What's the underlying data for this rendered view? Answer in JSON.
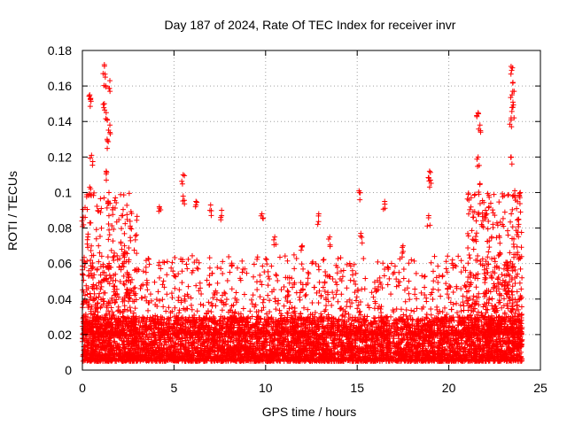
{
  "chart_data": {
    "type": "scatter",
    "title": "Day 187 of 2024, Rate Of TEC Index for receiver invr",
    "xlabel": "GPS time / hours",
    "ylabel": "ROTI / TECUs",
    "xlim": [
      0,
      25
    ],
    "ylim": [
      0,
      0.18
    ],
    "xticks": [
      0,
      5,
      10,
      15,
      20,
      25
    ],
    "yticks": [
      0,
      0.02,
      0.04,
      0.06,
      0.08,
      0.1,
      0.12,
      0.14,
      0.16,
      0.18
    ],
    "xtick_labels": [
      "0",
      "5",
      "10",
      "15",
      "20",
      "25"
    ],
    "ytick_labels": [
      "0",
      "0.02",
      "0.04",
      "0.06",
      "0.08",
      "0.1",
      "0.12",
      "0.14",
      "0.16",
      "0.18"
    ],
    "grid": true,
    "marker": "plus",
    "series": [
      {
        "name": "ROTI",
        "color": "#ff0000",
        "x_range": [
          0,
          24
        ],
        "typical_range": [
          0.005,
          0.03
        ],
        "notable_points": [
          {
            "x": 0.05,
            "y": 0.086
          },
          {
            "x": 0.3,
            "y": 0.075
          },
          {
            "x": 0.4,
            "y": 0.155
          },
          {
            "x": 0.45,
            "y": 0.153
          },
          {
            "x": 0.5,
            "y": 0.121
          },
          {
            "x": 0.4,
            "y": 0.103
          },
          {
            "x": 1.2,
            "y": 0.172
          },
          {
            "x": 1.25,
            "y": 0.165
          },
          {
            "x": 1.5,
            "y": 0.163
          },
          {
            "x": 1.2,
            "y": 0.15
          },
          {
            "x": 1.3,
            "y": 0.145
          },
          {
            "x": 1.5,
            "y": 0.138
          },
          {
            "x": 1.35,
            "y": 0.13
          },
          {
            "x": 1.3,
            "y": 0.112
          },
          {
            "x": 1.45,
            "y": 0.1
          },
          {
            "x": 1.8,
            "y": 0.097
          },
          {
            "x": 2.3,
            "y": 0.07
          },
          {
            "x": 4.2,
            "y": 0.092
          },
          {
            "x": 5.5,
            "y": 0.11
          },
          {
            "x": 5.5,
            "y": 0.098
          },
          {
            "x": 6.2,
            "y": 0.095
          },
          {
            "x": 7.0,
            "y": 0.093
          },
          {
            "x": 7.6,
            "y": 0.09
          },
          {
            "x": 9.8,
            "y": 0.088
          },
          {
            "x": 10.5,
            "y": 0.075
          },
          {
            "x": 12.0,
            "y": 0.07
          },
          {
            "x": 12.9,
            "y": 0.088
          },
          {
            "x": 13.5,
            "y": 0.075
          },
          {
            "x": 15.1,
            "y": 0.101
          },
          {
            "x": 15.2,
            "y": 0.077
          },
          {
            "x": 16.5,
            "y": 0.095
          },
          {
            "x": 17.5,
            "y": 0.07
          },
          {
            "x": 18.95,
            "y": 0.112
          },
          {
            "x": 19.0,
            "y": 0.107
          },
          {
            "x": 18.9,
            "y": 0.087
          },
          {
            "x": 20.2,
            "y": 0.062
          },
          {
            "x": 21.6,
            "y": 0.145
          },
          {
            "x": 21.7,
            "y": 0.138
          },
          {
            "x": 21.6,
            "y": 0.12
          },
          {
            "x": 21.7,
            "y": 0.105
          },
          {
            "x": 22.0,
            "y": 0.09
          },
          {
            "x": 23.4,
            "y": 0.171
          },
          {
            "x": 23.5,
            "y": 0.162
          },
          {
            "x": 23.45,
            "y": 0.155
          },
          {
            "x": 23.5,
            "y": 0.148
          },
          {
            "x": 23.4,
            "y": 0.142
          },
          {
            "x": 23.4,
            "y": 0.12
          },
          {
            "x": 23.6,
            "y": 0.101
          },
          {
            "x": 23.9,
            "y": 0.1
          },
          {
            "x": 23.8,
            "y": 0.085
          }
        ]
      }
    ]
  }
}
